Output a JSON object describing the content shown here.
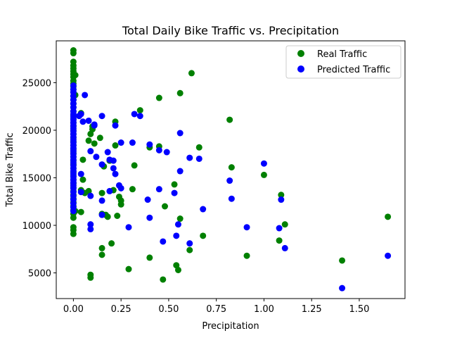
{
  "chart_data": {
    "type": "scatter",
    "title": "Total Daily Bike Traffic vs. Precipitation",
    "xlabel": "Precipitation",
    "ylabel": "Total Bike Traffic",
    "xlim": [
      -0.09,
      1.74
    ],
    "ylim": [
      2300,
      29400
    ],
    "xticks": [
      0.0,
      0.25,
      0.5,
      0.75,
      1.0,
      1.25,
      1.5
    ],
    "xtick_labels": [
      "0.00",
      "0.25",
      "0.50",
      "0.75",
      "1.00",
      "1.25",
      "1.50"
    ],
    "yticks": [
      5000,
      10000,
      15000,
      20000,
      25000
    ],
    "ytick_labels": [
      "5000",
      "10000",
      "15000",
      "20000",
      "25000"
    ],
    "grid": false,
    "legend_position": "top-right",
    "series": [
      {
        "name": "Real Traffic",
        "color": "#008000",
        "points": [
          [
            0,
            28400
          ],
          [
            0,
            28100
          ],
          [
            0,
            27200
          ],
          [
            0,
            26800
          ],
          [
            0,
            26500
          ],
          [
            0,
            26200
          ],
          [
            0,
            25900
          ],
          [
            0,
            25600
          ],
          [
            0,
            25200
          ],
          [
            0,
            24900
          ],
          [
            0,
            24600
          ],
          [
            0,
            24300
          ],
          [
            0,
            24000
          ],
          [
            0,
            23600
          ],
          [
            0,
            23200
          ],
          [
            0,
            22800
          ],
          [
            0,
            22400
          ],
          [
            0,
            22000
          ],
          [
            0,
            21600
          ],
          [
            0,
            21200
          ],
          [
            0,
            20800
          ],
          [
            0,
            20400
          ],
          [
            0,
            20000
          ],
          [
            0,
            19600
          ],
          [
            0,
            19200
          ],
          [
            0,
            18800
          ],
          [
            0,
            18400
          ],
          [
            0,
            18000
          ],
          [
            0,
            17600
          ],
          [
            0,
            17200
          ],
          [
            0,
            16800
          ],
          [
            0,
            16400
          ],
          [
            0,
            16000
          ],
          [
            0,
            15600
          ],
          [
            0,
            15200
          ],
          [
            0,
            14800
          ],
          [
            0,
            14400
          ],
          [
            0,
            14000
          ],
          [
            0,
            13600
          ],
          [
            0,
            13200
          ],
          [
            0,
            12800
          ],
          [
            0,
            12400
          ],
          [
            0,
            12000
          ],
          [
            0,
            11600
          ],
          [
            0,
            11200
          ],
          [
            0,
            10800
          ],
          [
            0,
            9800
          ],
          [
            0,
            9500
          ],
          [
            0,
            9100
          ],
          [
            0.01,
            25800
          ],
          [
            0.01,
            23700
          ],
          [
            0.01,
            11500
          ],
          [
            0.04,
            21800
          ],
          [
            0.04,
            13700
          ],
          [
            0.04,
            11400
          ],
          [
            0.05,
            16900
          ],
          [
            0.05,
            14800
          ],
          [
            0.06,
            13400
          ],
          [
            0.08,
            18900
          ],
          [
            0.08,
            13600
          ],
          [
            0.09,
            19600
          ],
          [
            0.09,
            4800
          ],
          [
            0.09,
            4500
          ],
          [
            0.1,
            20400
          ],
          [
            0.1,
            20100
          ],
          [
            0.11,
            18600
          ],
          [
            0.14,
            19200
          ],
          [
            0.15,
            13400
          ],
          [
            0.15,
            11200
          ],
          [
            0.15,
            7600
          ],
          [
            0.15,
            6900
          ],
          [
            0.16,
            16200
          ],
          [
            0.17,
            11100
          ],
          [
            0.18,
            10900
          ],
          [
            0.19,
            16800
          ],
          [
            0.2,
            8100
          ],
          [
            0.21,
            13700
          ],
          [
            0.22,
            20900
          ],
          [
            0.22,
            18400
          ],
          [
            0.23,
            11000
          ],
          [
            0.24,
            13000
          ],
          [
            0.25,
            12600
          ],
          [
            0.25,
            12200
          ],
          [
            0.29,
            5400
          ],
          [
            0.31,
            13800
          ],
          [
            0.32,
            16300
          ],
          [
            0.35,
            22100
          ],
          [
            0.4,
            18200
          ],
          [
            0.4,
            6600
          ],
          [
            0.45,
            23400
          ],
          [
            0.45,
            18300
          ],
          [
            0.47,
            4300
          ],
          [
            0.48,
            12000
          ],
          [
            0.53,
            14300
          ],
          [
            0.54,
            5800
          ],
          [
            0.55,
            5300
          ],
          [
            0.56,
            23900
          ],
          [
            0.56,
            10700
          ],
          [
            0.61,
            7400
          ],
          [
            0.62,
            26000
          ],
          [
            0.66,
            18200
          ],
          [
            0.68,
            8900
          ],
          [
            0.82,
            21100
          ],
          [
            0.83,
            16100
          ],
          [
            0.91,
            6800
          ],
          [
            1.0,
            15300
          ],
          [
            1.08,
            8400
          ],
          [
            1.09,
            13200
          ],
          [
            1.11,
            10100
          ],
          [
            1.41,
            6300
          ],
          [
            1.65,
            10900
          ]
        ]
      },
      {
        "name": "Predicted Traffic",
        "color": "#0000ff",
        "points": [
          [
            0,
            24700
          ],
          [
            0,
            24300
          ],
          [
            0,
            24000
          ],
          [
            0,
            23600
          ],
          [
            0,
            23200
          ],
          [
            0,
            22800
          ],
          [
            0,
            22400
          ],
          [
            0,
            22000
          ],
          [
            0,
            21700
          ],
          [
            0,
            21400
          ],
          [
            0,
            21100
          ],
          [
            0,
            20800
          ],
          [
            0,
            20500
          ],
          [
            0,
            20200
          ],
          [
            0,
            19900
          ],
          [
            0,
            19600
          ],
          [
            0,
            19300
          ],
          [
            0,
            19000
          ],
          [
            0,
            18700
          ],
          [
            0,
            18400
          ],
          [
            0,
            18100
          ],
          [
            0,
            17800
          ],
          [
            0,
            17500
          ],
          [
            0,
            17200
          ],
          [
            0,
            16900
          ],
          [
            0,
            16600
          ],
          [
            0,
            16300
          ],
          [
            0,
            16000
          ],
          [
            0,
            15700
          ],
          [
            0,
            15400
          ],
          [
            0,
            15100
          ],
          [
            0,
            14800
          ],
          [
            0,
            14500
          ],
          [
            0,
            14200
          ],
          [
            0,
            13900
          ],
          [
            0,
            13500
          ],
          [
            0,
            13100
          ],
          [
            0,
            12700
          ],
          [
            0,
            12300
          ],
          [
            0,
            11900
          ],
          [
            0,
            11500
          ],
          [
            0.03,
            21500
          ],
          [
            0.04,
            21700
          ],
          [
            0.04,
            15400
          ],
          [
            0.04,
            13500
          ],
          [
            0.05,
            20900
          ],
          [
            0.06,
            23700
          ],
          [
            0.08,
            21000
          ],
          [
            0.09,
            17800
          ],
          [
            0.09,
            13100
          ],
          [
            0.09,
            10100
          ],
          [
            0.09,
            9600
          ],
          [
            0.11,
            20600
          ],
          [
            0.11,
            20500
          ],
          [
            0.12,
            17200
          ],
          [
            0.15,
            21500
          ],
          [
            0.15,
            16400
          ],
          [
            0.15,
            12600
          ],
          [
            0.15,
            11100
          ],
          [
            0.18,
            17700
          ],
          [
            0.19,
            16900
          ],
          [
            0.19,
            13600
          ],
          [
            0.21,
            16800
          ],
          [
            0.21,
            16000
          ],
          [
            0.22,
            20500
          ],
          [
            0.22,
            15400
          ],
          [
            0.24,
            14200
          ],
          [
            0.25,
            18700
          ],
          [
            0.25,
            13900
          ],
          [
            0.29,
            9800
          ],
          [
            0.31,
            18700
          ],
          [
            0.32,
            21700
          ],
          [
            0.35,
            21500
          ],
          [
            0.39,
            12700
          ],
          [
            0.4,
            18500
          ],
          [
            0.4,
            10800
          ],
          [
            0.45,
            17900
          ],
          [
            0.45,
            13800
          ],
          [
            0.47,
            8300
          ],
          [
            0.49,
            17700
          ],
          [
            0.53,
            13400
          ],
          [
            0.54,
            8900
          ],
          [
            0.55,
            10100
          ],
          [
            0.56,
            19700
          ],
          [
            0.56,
            15700
          ],
          [
            0.61,
            17100
          ],
          [
            0.61,
            8100
          ],
          [
            0.66,
            17000
          ],
          [
            0.68,
            11700
          ],
          [
            0.82,
            14700
          ],
          [
            0.83,
            12800
          ],
          [
            0.91,
            9800
          ],
          [
            1.0,
            16500
          ],
          [
            1.08,
            9700
          ],
          [
            1.09,
            12700
          ],
          [
            1.11,
            7600
          ],
          [
            1.41,
            3400
          ],
          [
            1.65,
            6800
          ]
        ]
      }
    ]
  }
}
